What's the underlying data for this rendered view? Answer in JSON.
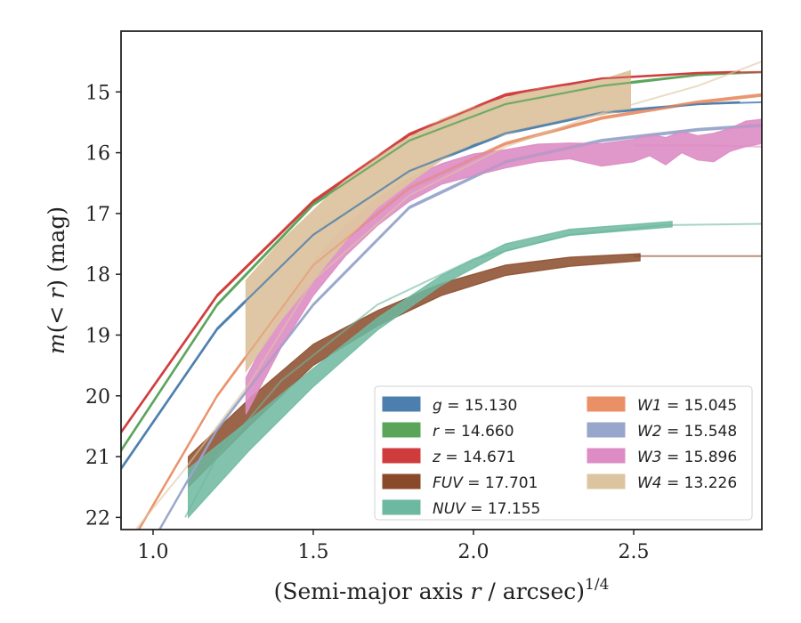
{
  "chart_data": {
    "type": "line",
    "title": "",
    "xlabel": "(Semi-major axis r / arcsec)^{1/4}",
    "xlabel_parts": {
      "pre": "(Semi-major axis ",
      "var": "r",
      "post": " / arcsec)",
      "sup": "1/4"
    },
    "ylabel": "m(< r) (mag)",
    "ylabel_parts": {
      "var1": "m",
      "mid1": "(< ",
      "var2": "r",
      "mid2": ") (mag)"
    },
    "xlim": [
      0.9,
      2.9
    ],
    "ylim": [
      22.2,
      14.0
    ],
    "y_inverted": true,
    "xticks": [
      1.0,
      1.5,
      2.0,
      2.5
    ],
    "xtick_labels": [
      "1.0",
      "1.5",
      "2.0",
      "2.5"
    ],
    "yticks": [
      15,
      16,
      17,
      18,
      19,
      20,
      21,
      22
    ],
    "ytick_labels": [
      "15",
      "16",
      "17",
      "18",
      "19",
      "20",
      "21",
      "22"
    ],
    "grid": false,
    "legend_position": "lower-right",
    "series": [
      {
        "key": "g",
        "name": "g = 15.130",
        "color": "#4c7fae",
        "band_opacity": 0.9,
        "model_opacity": 0.85,
        "model": {
          "x": [
            0.9,
            1.2,
            1.5,
            1.8,
            2.1,
            2.4,
            2.7,
            2.9
          ],
          "y": [
            21.2,
            18.9,
            17.35,
            16.3,
            15.68,
            15.34,
            15.2,
            15.17
          ]
        },
        "band": {
          "x": [
            0.9,
            1.2,
            1.5,
            1.8,
            2.1,
            2.4,
            2.7,
            2.83
          ],
          "lo": [
            21.18,
            18.88,
            17.33,
            16.28,
            15.66,
            15.32,
            15.19,
            15.16
          ],
          "hi": [
            21.22,
            18.92,
            17.37,
            16.32,
            15.7,
            15.36,
            15.21,
            15.18
          ]
        }
      },
      {
        "key": "r",
        "name": "r = 14.660",
        "color": "#5aa55a",
        "band_opacity": 0.9,
        "model_opacity": 0.85,
        "model": {
          "x": [
            0.9,
            1.2,
            1.5,
            1.8,
            2.1,
            2.4,
            2.7,
            2.9
          ],
          "y": [
            20.9,
            18.5,
            16.85,
            15.8,
            15.2,
            14.9,
            14.72,
            14.68
          ]
        },
        "band": {
          "x": [
            0.9,
            1.2,
            1.5,
            1.8,
            2.1,
            2.4,
            2.7,
            2.83
          ],
          "lo": [
            20.88,
            18.48,
            16.83,
            15.78,
            15.18,
            14.88,
            14.71,
            14.67
          ],
          "hi": [
            20.92,
            18.52,
            16.87,
            15.82,
            15.22,
            14.92,
            14.73,
            14.69
          ]
        }
      },
      {
        "key": "z",
        "name": "z = 14.671",
        "color": "#d03c3c",
        "band_opacity": 0.9,
        "model_opacity": 0.85,
        "model": {
          "x": [
            0.9,
            1.2,
            1.5,
            1.8,
            2.1,
            2.4,
            2.7,
            2.9
          ],
          "y": [
            20.6,
            18.35,
            16.8,
            15.7,
            15.05,
            14.78,
            14.69,
            14.67
          ]
        },
        "band": {
          "x": [
            0.9,
            1.2,
            1.5,
            1.8,
            2.1,
            2.4,
            2.7,
            2.83
          ],
          "lo": [
            20.58,
            18.33,
            16.78,
            15.68,
            15.03,
            14.77,
            14.68,
            14.66
          ],
          "hi": [
            20.62,
            18.37,
            16.82,
            15.72,
            15.07,
            14.79,
            14.7,
            14.68
          ]
        }
      },
      {
        "key": "FUV",
        "name": "FUV = 17.701",
        "color": "#8a4a2a",
        "band_opacity": 0.85,
        "model_opacity": 0.6,
        "model": {
          "x": [
            2.5,
            2.7,
            2.9
          ],
          "y": [
            17.7,
            17.7,
            17.7
          ]
        },
        "band": {
          "x": [
            1.11,
            1.3,
            1.5,
            1.7,
            1.9,
            2.1,
            2.3,
            2.52
          ],
          "lo": [
            21.0,
            20.05,
            19.15,
            18.6,
            18.15,
            17.85,
            17.72,
            17.66
          ],
          "hi": [
            21.5,
            20.5,
            19.5,
            18.85,
            18.35,
            18.02,
            17.87,
            17.78
          ]
        }
      },
      {
        "key": "NUV",
        "name": "NUV = 17.155",
        "color": "#6db8a0",
        "band_opacity": 0.85,
        "model_opacity": 0.6,
        "model": {
          "x": [
            1.1,
            1.2,
            1.4,
            1.7,
            2.0,
            2.3,
            2.6,
            2.9
          ],
          "y": [
            22.0,
            21.0,
            19.75,
            18.5,
            17.75,
            17.35,
            17.19,
            17.17
          ]
        },
        "band": {
          "x": [
            1.11,
            1.3,
            1.5,
            1.7,
            1.9,
            2.1,
            2.3,
            2.62
          ],
          "lo": [
            21.2,
            20.4,
            19.55,
            18.72,
            18.02,
            17.5,
            17.26,
            17.13
          ],
          "hi": [
            22.0,
            20.9,
            19.85,
            18.92,
            18.18,
            17.62,
            17.36,
            17.22
          ]
        }
      },
      {
        "key": "W1",
        "name": "W1 = 15.045",
        "color": "#ea8f66",
        "band_opacity": 0.85,
        "model_opacity": 0.55,
        "model": {
          "x": [
            0.9,
            1.2,
            1.5,
            1.8,
            2.1,
            2.4,
            2.7,
            2.9
          ],
          "y": [
            22.7,
            20.0,
            17.85,
            16.58,
            15.85,
            15.43,
            15.17,
            15.05
          ]
        },
        "band": {
          "x": [
            0.9,
            1.2,
            1.5,
            1.8,
            2.1,
            2.4,
            2.7,
            2.9
          ],
          "lo": [
            22.68,
            19.98,
            17.83,
            16.56,
            15.83,
            15.41,
            15.15,
            15.03
          ],
          "hi": [
            22.72,
            20.02,
            17.87,
            16.6,
            15.87,
            15.45,
            15.19,
            15.07
          ]
        }
      },
      {
        "key": "W2",
        "name": "W2 = 15.548",
        "color": "#97a6ca",
        "band_opacity": 0.85,
        "model_opacity": 0.65,
        "model": {
          "x": [
            0.9,
            1.2,
            1.5,
            1.8,
            2.1,
            2.4,
            2.7,
            2.9
          ],
          "y": [
            23.3,
            20.55,
            18.5,
            16.9,
            16.15,
            15.8,
            15.62,
            15.55
          ]
        },
        "band": {
          "x": [
            0.9,
            1.2,
            1.5,
            1.8,
            2.1,
            2.4,
            2.7,
            2.9
          ],
          "lo": [
            23.28,
            20.53,
            18.48,
            16.88,
            16.13,
            15.78,
            15.6,
            15.53
          ],
          "hi": [
            23.32,
            20.57,
            18.52,
            16.92,
            16.17,
            15.82,
            15.64,
            15.57
          ]
        }
      },
      {
        "key": "W3",
        "name": "W3 = 15.896",
        "color": "#dd8cc4",
        "band_opacity": 0.9,
        "model_opacity": 0.6,
        "model": {
          "x": [
            2.5,
            2.7,
            2.9
          ],
          "y": [
            15.88,
            15.88,
            15.9
          ]
        },
        "band": {
          "x": [
            1.29,
            1.4,
            1.5,
            1.6,
            1.7,
            1.8,
            1.9,
            2.0,
            2.1,
            2.2,
            2.3,
            2.4,
            2.5,
            2.55,
            2.6,
            2.65,
            2.7,
            2.75,
            2.8,
            2.85,
            2.9
          ],
          "lo": [
            19.7,
            18.6,
            17.8,
            17.2,
            16.75,
            16.42,
            16.18,
            16.02,
            15.95,
            15.86,
            15.84,
            15.85,
            15.78,
            15.7,
            15.75,
            15.65,
            15.72,
            15.68,
            15.6,
            15.48,
            15.45
          ],
          "hi": [
            20.3,
            19.2,
            18.35,
            17.7,
            17.2,
            16.8,
            16.52,
            16.38,
            16.25,
            16.15,
            16.1,
            16.22,
            16.15,
            16.05,
            16.2,
            16.0,
            16.12,
            16.15,
            15.98,
            15.9,
            15.85
          ]
        }
      },
      {
        "key": "W4",
        "name": "W4 = 13.226",
        "color": "#ddc4a0",
        "band_opacity": 0.95,
        "model_opacity": 0.6,
        "model": {
          "x": [
            0.9,
            1.1,
            1.3,
            1.5,
            1.8,
            2.1,
            2.4,
            2.7,
            2.9
          ],
          "y": [
            22.5,
            21.2,
            19.8,
            18.1,
            16.7,
            15.9,
            15.35,
            14.9,
            14.5
          ]
        },
        "band": {
          "x": [
            1.29,
            1.4,
            1.5,
            1.6,
            1.7,
            1.8,
            1.9,
            2.0,
            2.1,
            2.2,
            2.3,
            2.4,
            2.49
          ],
          "lo": [
            18.1,
            17.45,
            16.95,
            16.45,
            16.05,
            15.75,
            15.45,
            15.25,
            15.1,
            14.95,
            14.9,
            14.8,
            14.65
          ],
          "hi": [
            19.6,
            18.75,
            18.1,
            17.45,
            16.9,
            16.5,
            16.12,
            15.85,
            15.7,
            15.55,
            15.45,
            15.38,
            15.28
          ]
        }
      }
    ],
    "legend": {
      "columns": [
        [
          {
            "key": "g",
            "var": "g",
            "val": " = 15.130",
            "color": "#4c7fae"
          },
          {
            "key": "r",
            "var": "r",
            "val": " = 14.660",
            "color": "#5aa55a"
          },
          {
            "key": "z",
            "var": "z",
            "val": " = 14.671",
            "color": "#d03c3c"
          },
          {
            "key": "FUV",
            "var": "FUV",
            "val": " = 17.701",
            "color": "#8a4a2a"
          },
          {
            "key": "NUV",
            "var": "NUV",
            "val": " = 17.155",
            "color": "#6db8a0"
          }
        ],
        [
          {
            "key": "W1",
            "var": "W1",
            "val": " = 15.045",
            "color": "#ea8f66"
          },
          {
            "key": "W2",
            "var": "W2",
            "val": " = 15.548",
            "color": "#97a6ca"
          },
          {
            "key": "W3",
            "var": "W3",
            "val": " = 15.896",
            "color": "#dd8cc4"
          },
          {
            "key": "W4",
            "var": "W4",
            "val": " = 13.226",
            "color": "#ddc4a0"
          }
        ]
      ]
    }
  }
}
